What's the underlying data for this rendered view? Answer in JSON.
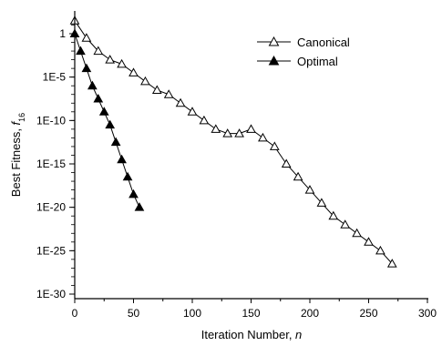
{
  "chart_data": {
    "type": "scatter",
    "xlabel": "Iteration Number, n",
    "xlabel_main": "Iteration Number, ",
    "xlabel_var": "n",
    "ylabel": "Best Fitness, f16",
    "ylabel_main": "Best Fitness, ",
    "ylabel_var": "f",
    "ylabel_sub": "16",
    "xlim": [
      0,
      300
    ],
    "ylim_log10": [
      -30,
      2
    ],
    "y_scale": "log",
    "grid": false,
    "legend_position": "top-right",
    "x_ticks": [
      0,
      50,
      100,
      150,
      200,
      250,
      300
    ],
    "y_ticks": [
      {
        "label": "1",
        "log10": 0
      },
      {
        "label": "1E-5",
        "log10": -5
      },
      {
        "label": "1E-10",
        "log10": -10
      },
      {
        "label": "1E-15",
        "log10": -15
      },
      {
        "label": "1E-20",
        "log10": -20
      },
      {
        "label": "1E-25",
        "log10": -25
      },
      {
        "label": "1E-30",
        "log10": -30
      }
    ],
    "series": [
      {
        "name": "Canonical",
        "marker": "open-triangle",
        "color": "#000000",
        "x": [
          0,
          10,
          20,
          30,
          40,
          50,
          60,
          70,
          80,
          90,
          100,
          110,
          120,
          130,
          140,
          150,
          160,
          170,
          180,
          190,
          200,
          210,
          220,
          230,
          240,
          250,
          260,
          270
        ],
        "log10_y": [
          1.5,
          -0.5,
          -2,
          -3,
          -3.5,
          -4.5,
          -5.5,
          -6.5,
          -7,
          -8,
          -9,
          -10,
          -11,
          -11.5,
          -11.5,
          -11,
          -12,
          -13,
          -15,
          -16.5,
          -18,
          -19.5,
          -21,
          -22,
          -23,
          -24,
          -25,
          -26.5
        ]
      },
      {
        "name": "Optimal",
        "marker": "filled-triangle",
        "color": "#000000",
        "x": [
          0,
          5,
          10,
          15,
          20,
          25,
          30,
          35,
          40,
          45,
          50,
          55
        ],
        "log10_y": [
          0,
          -2,
          -4,
          -6,
          -7.5,
          -9,
          -10.5,
          -12.5,
          -14.5,
          -16.5,
          -18.5,
          -20
        ]
      }
    ]
  }
}
